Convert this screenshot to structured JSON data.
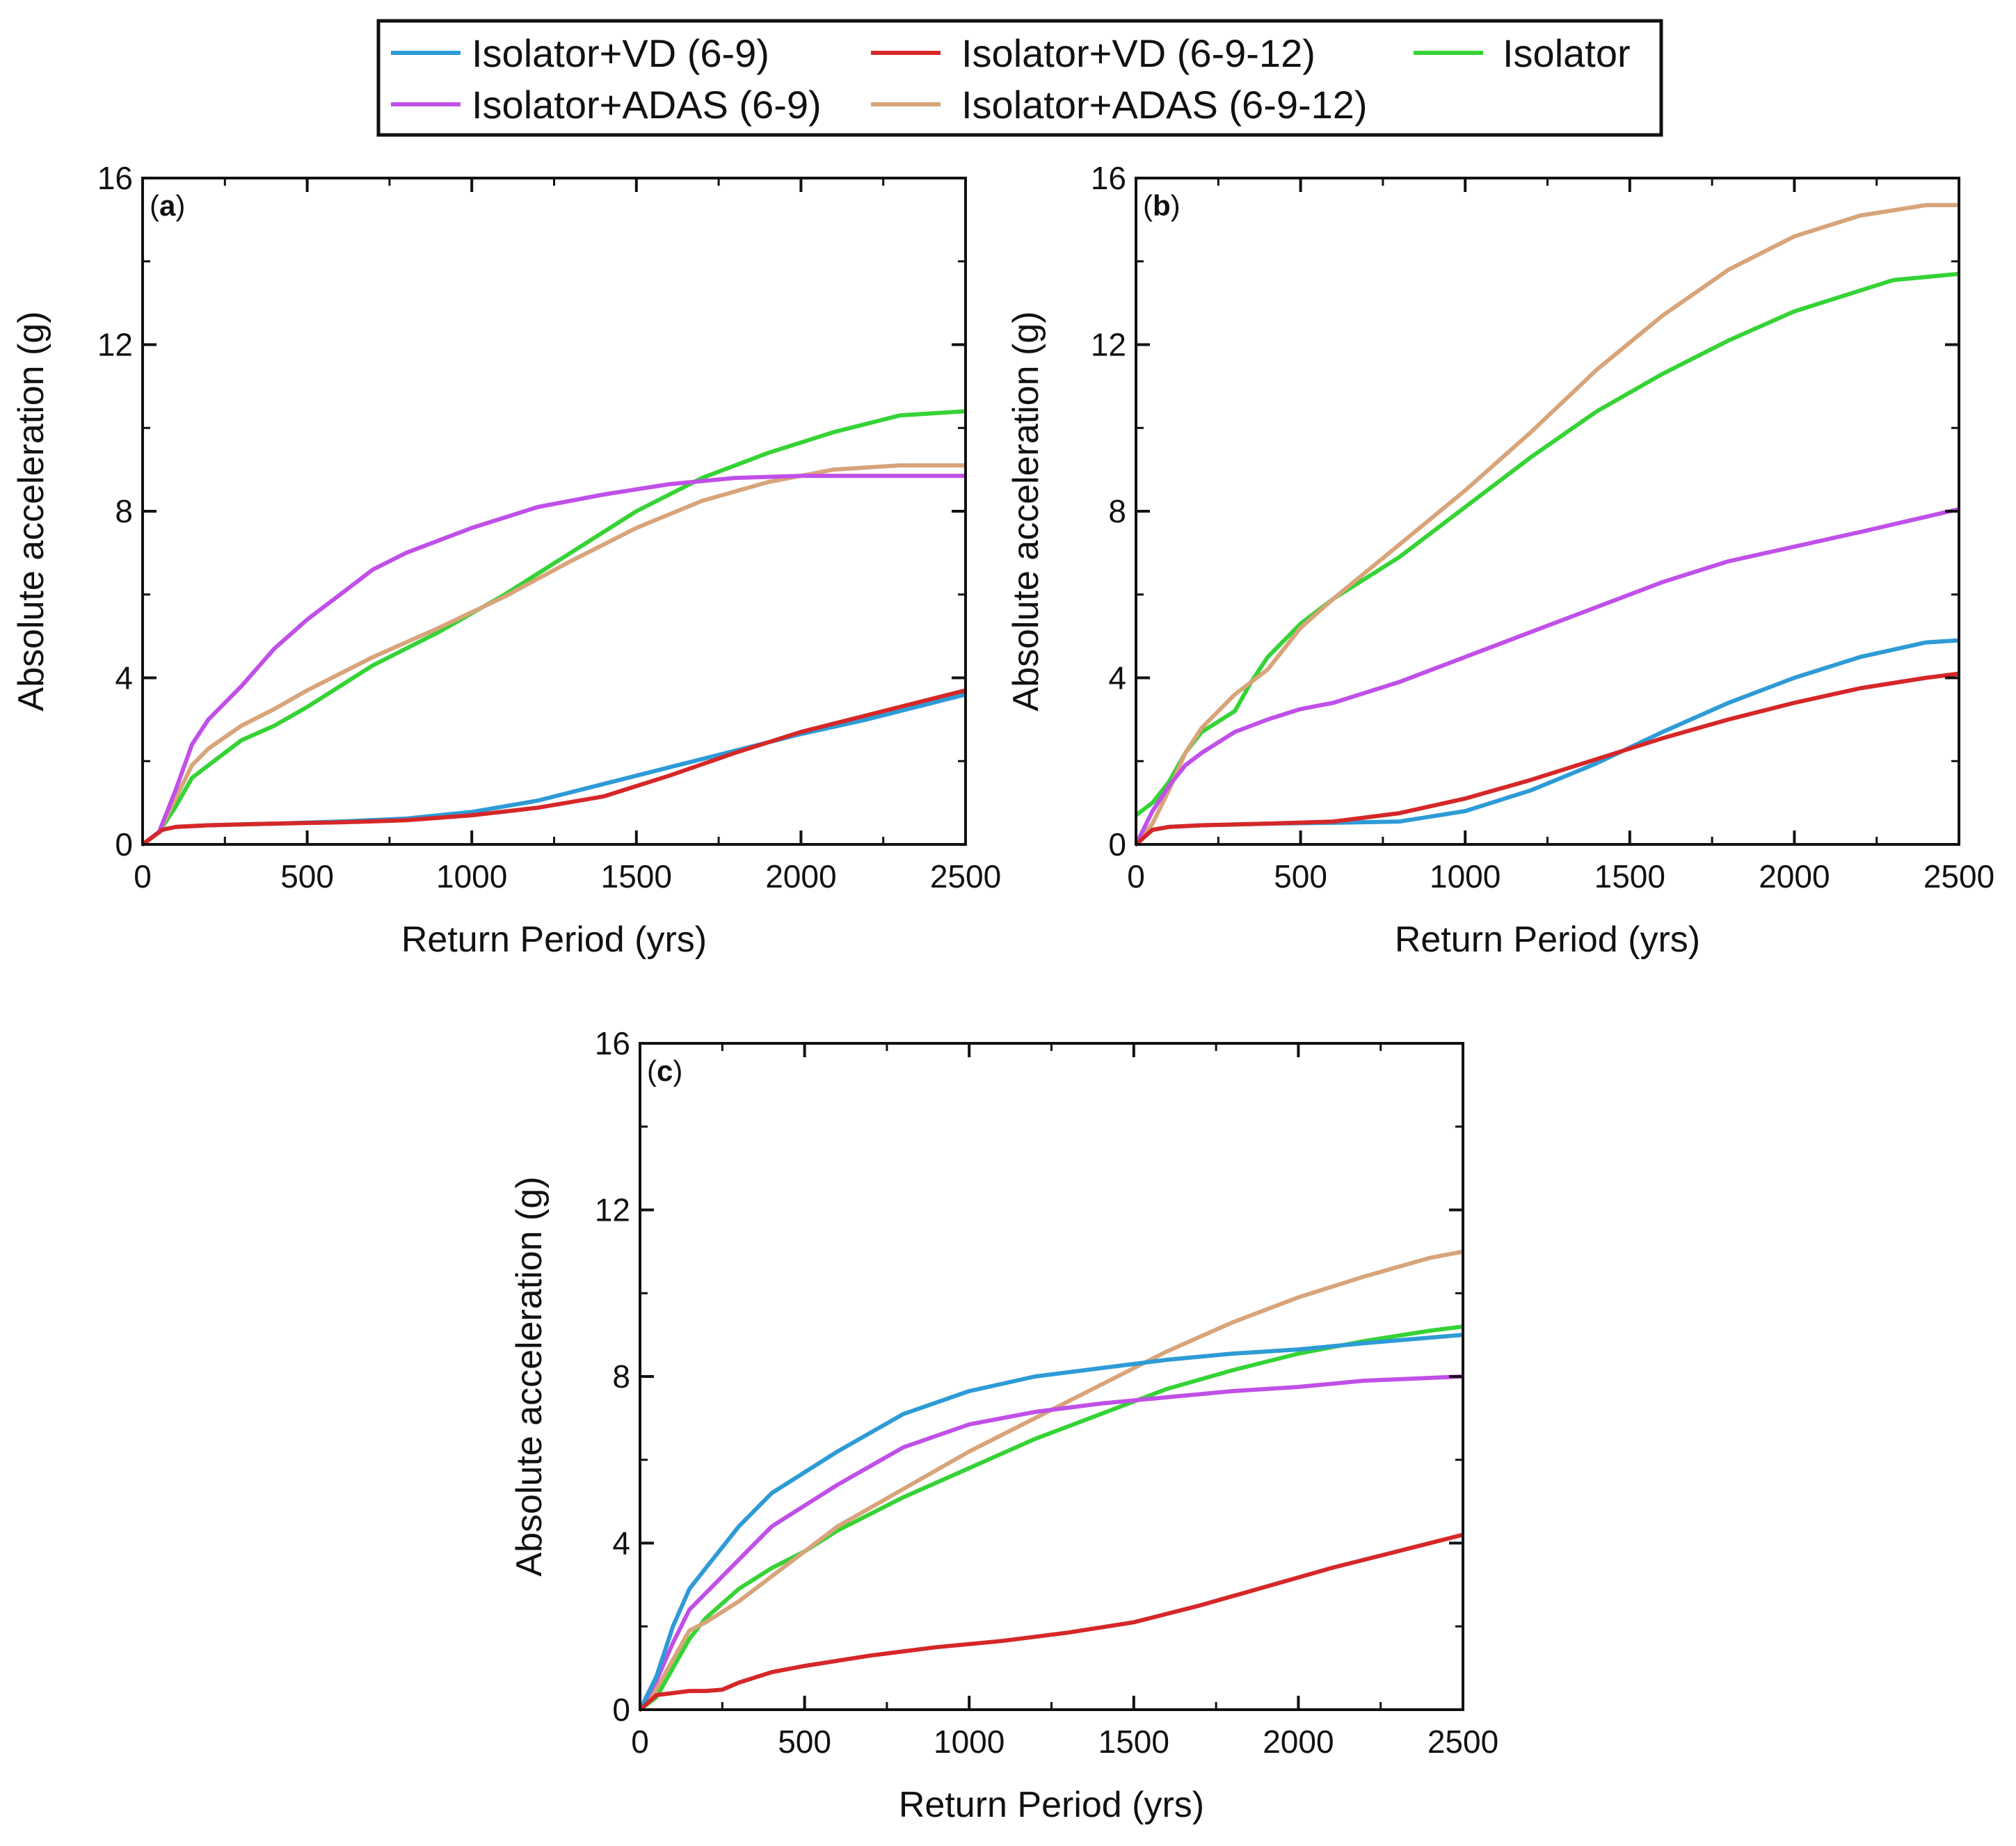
{
  "colors": {
    "isolator_vd_69": "#2e9bd6",
    "isolator_vd_6912": "#d62728",
    "isolator": "#35d335",
    "isolator_adas_69": "#c050e8",
    "isolator_adas_6912": "#d8a47a"
  },
  "legend": {
    "items": [
      {
        "label": "Isolator+VD (6-9)",
        "color": "#2e9bd6"
      },
      {
        "label": "Isolator+VD (6-9-12)",
        "color": "#d62728"
      },
      {
        "label": "Isolator",
        "color": "#35d335"
      },
      {
        "label": "Isolator+ADAS (6-9)",
        "color": "#c050e8"
      },
      {
        "label": "Isolator+ADAS (6-9-12)",
        "color": "#d8a47a"
      }
    ]
  },
  "chart_data": [
    {
      "type": "line",
      "panel_label": "a",
      "xlabel": "Return Period (yrs)",
      "ylabel": "Absolute acceleration (g)",
      "xlim": [
        0,
        2500
      ],
      "ylim": [
        0,
        16
      ],
      "xticks": [
        0,
        500,
        1000,
        1500,
        2000,
        2500
      ],
      "yticks": [
        0,
        4,
        8,
        12,
        16
      ],
      "series": [
        {
          "name": "Isolator+VD (6-9)",
          "x": [
            0,
            60,
            100,
            200,
            400,
            600,
            800,
            1000,
            1200,
            1400,
            1600,
            1800,
            2000,
            2200,
            2500
          ],
          "y": [
            0,
            0.35,
            0.42,
            0.46,
            0.5,
            0.55,
            0.62,
            0.78,
            1.05,
            1.45,
            1.85,
            2.25,
            2.65,
            3.0,
            3.6
          ]
        },
        {
          "name": "Isolator+VD (6-9-12)",
          "x": [
            0,
            60,
            100,
            200,
            400,
            600,
            800,
            1000,
            1200,
            1400,
            1600,
            1800,
            2000,
            2200,
            2500
          ],
          "y": [
            0,
            0.35,
            0.42,
            0.46,
            0.5,
            0.53,
            0.58,
            0.7,
            0.88,
            1.15,
            1.65,
            2.2,
            2.7,
            3.1,
            3.7
          ]
        },
        {
          "name": "Isolator",
          "x": [
            0,
            50,
            100,
            150,
            200,
            300,
            400,
            500,
            700,
            900,
            1100,
            1300,
            1500,
            1700,
            1900,
            2100,
            2300,
            2500
          ],
          "y": [
            0,
            0.3,
            0.9,
            1.6,
            1.9,
            2.5,
            2.85,
            3.3,
            4.3,
            5.1,
            6.0,
            7.0,
            8.0,
            8.8,
            9.4,
            9.9,
            10.3,
            10.4
          ]
        },
        {
          "name": "Isolator+ADAS (6-9)",
          "x": [
            0,
            50,
            100,
            150,
            200,
            300,
            400,
            500,
            600,
            700,
            800,
            1000,
            1200,
            1400,
            1600,
            1800,
            2000,
            2200,
            2500
          ],
          "y": [
            0,
            0.3,
            1.3,
            2.4,
            3.0,
            3.8,
            4.7,
            5.4,
            6.0,
            6.6,
            7.0,
            7.6,
            8.1,
            8.4,
            8.65,
            8.8,
            8.85,
            8.85,
            8.85
          ]
        },
        {
          "name": "Isolator+ADAS (6-9-12)",
          "x": [
            0,
            50,
            100,
            150,
            200,
            300,
            400,
            500,
            700,
            900,
            1100,
            1300,
            1500,
            1700,
            1900,
            2100,
            2300,
            2500
          ],
          "y": [
            0,
            0.3,
            1.1,
            1.9,
            2.3,
            2.85,
            3.25,
            3.7,
            4.5,
            5.2,
            5.95,
            6.8,
            7.6,
            8.25,
            8.7,
            9.0,
            9.1,
            9.1
          ]
        }
      ]
    },
    {
      "type": "line",
      "panel_label": "b",
      "xlabel": "Return Period (yrs)",
      "ylabel": "Absolute acceleration (g)",
      "xlim": [
        0,
        2500
      ],
      "ylim": [
        0,
        16
      ],
      "xticks": [
        0,
        500,
        1000,
        1500,
        2000,
        2500
      ],
      "yticks": [
        0,
        4,
        8,
        12,
        16
      ],
      "series": [
        {
          "name": "Isolator+VD (6-9)",
          "x": [
            0,
            50,
            100,
            200,
            400,
            600,
            800,
            1000,
            1200,
            1400,
            1600,
            1800,
            2000,
            2200,
            2400,
            2500
          ],
          "y": [
            0,
            0.35,
            0.42,
            0.46,
            0.5,
            0.52,
            0.55,
            0.8,
            1.3,
            1.95,
            2.7,
            3.4,
            4.0,
            4.5,
            4.85,
            4.9
          ]
        },
        {
          "name": "Isolator+VD (6-9-12)",
          "x": [
            0,
            50,
            100,
            200,
            400,
            600,
            800,
            1000,
            1200,
            1400,
            1600,
            1800,
            2000,
            2200,
            2400,
            2500
          ],
          "y": [
            0,
            0.35,
            0.42,
            0.46,
            0.5,
            0.55,
            0.75,
            1.1,
            1.55,
            2.05,
            2.55,
            3.0,
            3.4,
            3.75,
            4.0,
            4.1
          ]
        },
        {
          "name": "Isolator",
          "x": [
            0,
            50,
            100,
            150,
            200,
            300,
            350,
            400,
            500,
            600,
            800,
            1000,
            1200,
            1400,
            1600,
            1800,
            2000,
            2200,
            2300,
            2500
          ],
          "y": [
            0.7,
            1.0,
            1.5,
            2.2,
            2.7,
            3.2,
            3.9,
            4.5,
            5.3,
            5.9,
            6.9,
            8.1,
            9.3,
            10.4,
            11.3,
            12.1,
            12.8,
            13.3,
            13.55,
            13.7
          ]
        },
        {
          "name": "Isolator+ADAS (6-9)",
          "x": [
            0,
            50,
            100,
            150,
            200,
            300,
            400,
            500,
            600,
            800,
            1000,
            1200,
            1400,
            1600,
            1800,
            2000,
            2200,
            2500
          ],
          "y": [
            0,
            0.8,
            1.4,
            1.9,
            2.2,
            2.7,
            3.0,
            3.25,
            3.4,
            3.9,
            4.5,
            5.1,
            5.7,
            6.3,
            6.8,
            7.15,
            7.5,
            8.05
          ]
        },
        {
          "name": "Isolator+ADAS (6-9-12)",
          "x": [
            0,
            50,
            100,
            150,
            200,
            300,
            400,
            500,
            600,
            800,
            1000,
            1200,
            1400,
            1600,
            1800,
            2000,
            2200,
            2400,
            2500
          ],
          "y": [
            0,
            0.5,
            1.3,
            2.2,
            2.8,
            3.6,
            4.2,
            5.2,
            5.9,
            7.2,
            8.5,
            9.9,
            11.4,
            12.7,
            13.8,
            14.6,
            15.1,
            15.35,
            15.35
          ]
        }
      ]
    },
    {
      "type": "line",
      "panel_label": "c",
      "xlabel": "Return Period (yrs)",
      "ylabel": "Absolute acceleration (g)",
      "xlim": [
        0,
        2500
      ],
      "ylim": [
        0,
        16
      ],
      "xticks": [
        0,
        500,
        1000,
        1500,
        2000,
        2500
      ],
      "yticks": [
        0,
        4,
        8,
        12,
        16
      ],
      "series": [
        {
          "name": "Isolator+VD (6-9)",
          "x": [
            0,
            50,
            100,
            150,
            200,
            300,
            400,
            500,
            600,
            800,
            1000,
            1200,
            1400,
            1600,
            1800,
            2000,
            2200,
            2500
          ],
          "y": [
            0,
            0.8,
            2.0,
            2.9,
            3.4,
            4.4,
            5.2,
            5.7,
            6.2,
            7.1,
            7.65,
            8.0,
            8.2,
            8.4,
            8.55,
            8.65,
            8.8,
            9.0
          ]
        },
        {
          "name": "Isolator+VD (6-9-12)",
          "x": [
            0,
            50,
            100,
            150,
            200,
            250,
            300,
            400,
            500,
            700,
            900,
            1100,
            1300,
            1500,
            1700,
            1900,
            2100,
            2300,
            2500
          ],
          "y": [
            0,
            0.35,
            0.4,
            0.45,
            0.45,
            0.48,
            0.65,
            0.9,
            1.05,
            1.3,
            1.5,
            1.65,
            1.85,
            2.1,
            2.5,
            2.95,
            3.4,
            3.8,
            4.2
          ]
        },
        {
          "name": "Isolator",
          "x": [
            0,
            50,
            100,
            150,
            200,
            300,
            400,
            500,
            600,
            800,
            1000,
            1200,
            1400,
            1600,
            1800,
            2000,
            2200,
            2400,
            2500
          ],
          "y": [
            0,
            0.3,
            1.0,
            1.7,
            2.2,
            2.9,
            3.4,
            3.8,
            4.3,
            5.1,
            5.8,
            6.5,
            7.1,
            7.7,
            8.15,
            8.55,
            8.85,
            9.1,
            9.2
          ]
        },
        {
          "name": "Isolator+ADAS (6-9)",
          "x": [
            0,
            50,
            100,
            150,
            200,
            300,
            400,
            500,
            600,
            800,
            1000,
            1200,
            1400,
            1600,
            1800,
            2000,
            2200,
            2500
          ],
          "y": [
            0,
            0.7,
            1.6,
            2.4,
            2.8,
            3.6,
            4.4,
            4.9,
            5.4,
            6.3,
            6.85,
            7.15,
            7.35,
            7.5,
            7.65,
            7.75,
            7.9,
            8.0
          ]
        },
        {
          "name": "Isolator+ADAS (6-9-12)",
          "x": [
            0,
            50,
            100,
            150,
            200,
            300,
            400,
            500,
            600,
            800,
            1000,
            1200,
            1400,
            1600,
            1800,
            2000,
            2200,
            2400,
            2500
          ],
          "y": [
            0,
            0.5,
            1.2,
            1.9,
            2.1,
            2.6,
            3.2,
            3.8,
            4.4,
            5.3,
            6.2,
            7.0,
            7.8,
            8.6,
            9.3,
            9.9,
            10.4,
            10.85,
            11.0
          ]
        }
      ]
    }
  ]
}
